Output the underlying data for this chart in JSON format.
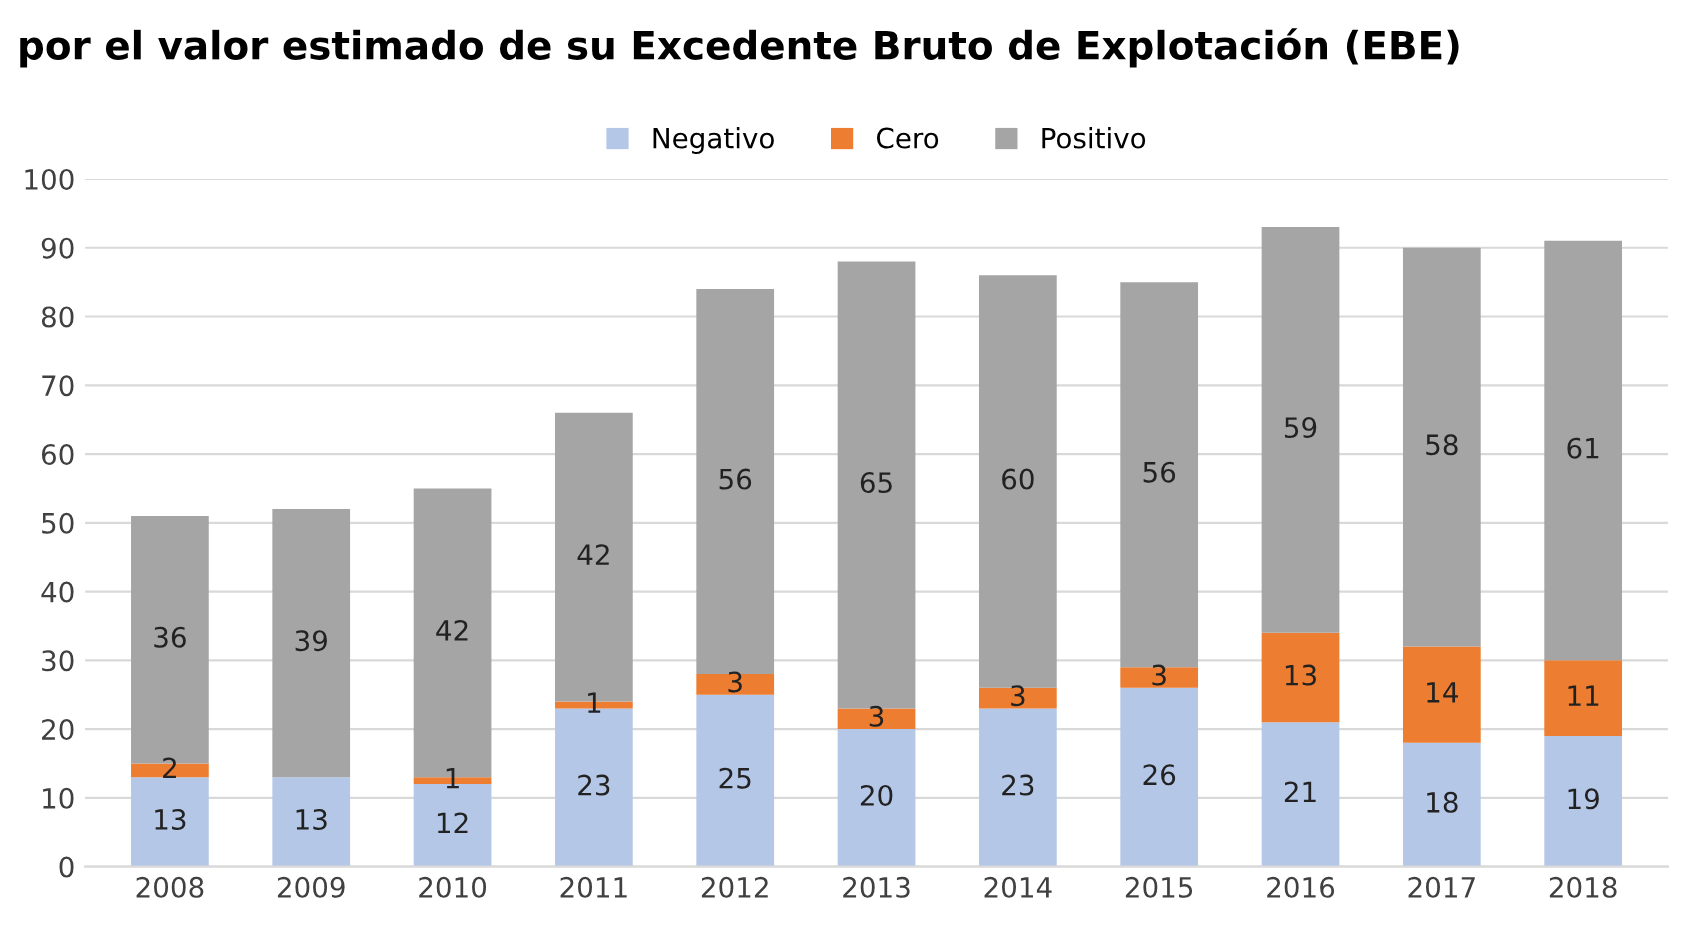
{
  "chart_data": {
    "type": "bar",
    "title": "por el valor estimado de su Excedente Bruto de Explotación (EBE)",
    "stacked": true,
    "categories": [
      "2008",
      "2009",
      "2010",
      "2011",
      "2012",
      "2013",
      "2014",
      "2015",
      "2016",
      "2017",
      "2018"
    ],
    "series": [
      {
        "name": "Negativo",
        "color": "#b4c7e7",
        "values": [
          13,
          13,
          12,
          23,
          25,
          20,
          23,
          26,
          21,
          18,
          19
        ],
        "value_labels": [
          "13",
          "13",
          "12",
          "23",
          "25",
          "20",
          "23",
          "26",
          "21",
          "18",
          "19"
        ]
      },
      {
        "name": "Cero",
        "color": "#ed7d31",
        "values": [
          2,
          0,
          1,
          1,
          3,
          3,
          3,
          3,
          13,
          14,
          11
        ],
        "value_labels": [
          "2",
          null,
          "1",
          "1",
          "3",
          "3",
          "3",
          "3",
          "13",
          "14",
          "11"
        ]
      },
      {
        "name": "Positivo",
        "color": "#a5a5a5",
        "values": [
          36,
          39,
          42,
          42,
          56,
          65,
          60,
          56,
          59,
          58,
          61
        ],
        "value_labels": [
          "36",
          "39",
          "42",
          "42",
          "56",
          "65",
          "60",
          "56",
          "59",
          "58",
          "61"
        ]
      }
    ],
    "ylim": [
      0,
      100
    ],
    "yticks": [
      0,
      10,
      20,
      30,
      40,
      50,
      60,
      70,
      80,
      90,
      100
    ],
    "grid": "y",
    "legend": "top"
  }
}
